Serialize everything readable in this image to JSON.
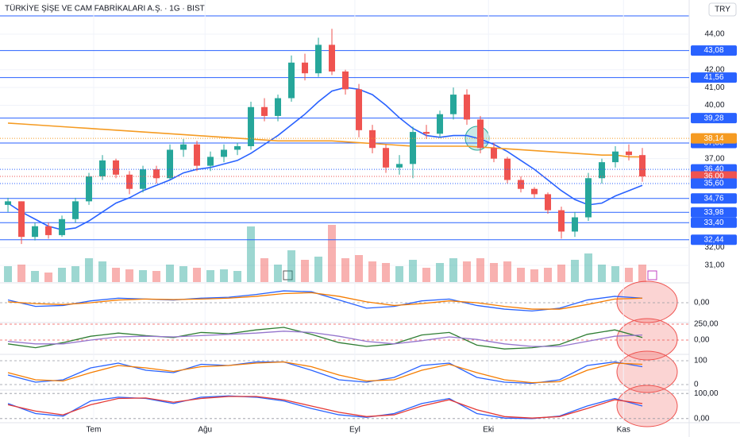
{
  "chart_data": {
    "type": "candlestick",
    "title": "TÜRKİYE ŞİŞE VE CAM FABRİKALARI A.Ş. · 1G · BIST",
    "currency": "TRY",
    "up_color": "#26a69a",
    "down_color": "#ef5350",
    "xlim": [
      -0.59,
      50.47
    ],
    "xticks": [
      {
        "value": 6.35,
        "label": "Tem"
      },
      {
        "value": 14.6,
        "label": "Ağu"
      },
      {
        "value": 25.7,
        "label": "Eyl"
      },
      {
        "value": 35.6,
        "label": "Eki"
      },
      {
        "value": 45.6,
        "label": "Kas"
      }
    ],
    "ylim": [
      30.06,
      45.92
    ],
    "yticks": [
      {
        "value": 31,
        "label": "31,00"
      },
      {
        "value": 32,
        "label": "32,00"
      },
      {
        "value": 37,
        "label": "37,00"
      },
      {
        "value": 40,
        "label": "40,00"
      },
      {
        "value": 41,
        "label": "41,00"
      },
      {
        "value": 42,
        "label": "42,00"
      },
      {
        "value": 44,
        "label": "44,00"
      }
    ],
    "candles": [
      [
        34.4,
        34.8,
        34.0,
        34.6
      ],
      [
        34.6,
        34.6,
        32.2,
        32.6
      ],
      [
        32.6,
        33.4,
        32.4,
        33.2
      ],
      [
        33.2,
        33.4,
        32.5,
        32.7
      ],
      [
        32.7,
        33.8,
        32.6,
        33.6
      ],
      [
        33.6,
        34.8,
        33.4,
        34.6
      ],
      [
        34.6,
        36.2,
        34.4,
        36.0
      ],
      [
        36.0,
        37.2,
        35.8,
        36.9
      ],
      [
        36.9,
        37.0,
        35.9,
        36.1
      ],
      [
        36.1,
        36.3,
        35.0,
        35.3
      ],
      [
        35.3,
        36.6,
        35.1,
        36.4
      ],
      [
        36.4,
        36.6,
        35.6,
        35.9
      ],
      [
        35.9,
        37.8,
        35.8,
        37.5
      ],
      [
        37.5,
        38.1,
        37.1,
        37.8
      ],
      [
        37.8,
        38.0,
        36.3,
        36.6
      ],
      [
        36.6,
        37.4,
        36.3,
        37.1
      ],
      [
        37.1,
        37.8,
        36.8,
        37.5
      ],
      [
        37.5,
        37.9,
        37.2,
        37.7
      ],
      [
        37.7,
        40.2,
        37.5,
        39.9
      ],
      [
        39.9,
        40.4,
        39.1,
        39.4
      ],
      [
        39.4,
        40.6,
        39.1,
        40.4
      ],
      [
        40.4,
        42.8,
        40.2,
        42.4
      ],
      [
        42.4,
        42.9,
        41.4,
        41.8
      ],
      [
        41.8,
        43.8,
        41.6,
        43.4
      ],
      [
        43.4,
        44.3,
        41.7,
        41.9
      ],
      [
        41.9,
        42.0,
        40.6,
        40.9
      ],
      [
        40.9,
        41.2,
        38.2,
        38.6
      ],
      [
        38.6,
        38.9,
        37.3,
        37.6
      ],
      [
        37.6,
        37.8,
        36.2,
        36.5
      ],
      [
        36.5,
        37.2,
        36.1,
        36.7
      ],
      [
        36.7,
        38.8,
        35.9,
        38.5
      ],
      [
        38.5,
        38.9,
        38.1,
        38.4
      ],
      [
        38.4,
        39.7,
        38.2,
        39.5
      ],
      [
        39.5,
        41.0,
        39.2,
        40.6
      ],
      [
        40.6,
        40.9,
        38.9,
        39.2
      ],
      [
        39.2,
        39.4,
        37.3,
        37.6
      ],
      [
        37.6,
        37.9,
        36.8,
        37.0
      ],
      [
        37.0,
        37.1,
        35.6,
        35.8
      ],
      [
        35.8,
        36.0,
        35.1,
        35.3
      ],
      [
        35.3,
        35.4,
        34.8,
        35.0
      ],
      [
        35.0,
        35.1,
        33.9,
        34.1
      ],
      [
        34.1,
        34.3,
        32.5,
        32.9
      ],
      [
        32.9,
        34.0,
        32.6,
        33.7
      ],
      [
        33.7,
        36.2,
        33.5,
        35.9
      ],
      [
        35.9,
        37.0,
        35.6,
        36.8
      ],
      [
        36.8,
        37.7,
        36.5,
        37.4
      ],
      [
        37.4,
        37.8,
        36.9,
        37.2
      ],
      [
        37.2,
        37.6,
        35.7,
        36.0
      ]
    ],
    "volume": [
      20,
      22,
      14,
      12,
      18,
      20,
      30,
      26,
      18,
      16,
      15,
      14,
      22,
      20,
      18,
      15,
      16,
      14,
      70,
      30,
      22,
      40,
      28,
      32,
      72,
      30,
      34,
      26,
      24,
      20,
      28,
      18,
      24,
      30,
      26,
      30,
      24,
      26,
      18,
      16,
      18,
      22,
      28,
      36,
      22,
      20,
      18,
      22
    ],
    "ma_lines": [
      {
        "color": "#2962ff",
        "values": [
          34.5,
          34.0,
          33.6,
          33.2,
          33.0,
          33.1,
          33.5,
          34.0,
          34.5,
          34.8,
          35.2,
          35.5,
          35.8,
          36.2,
          36.4,
          36.5,
          36.7,
          36.9,
          37.3,
          37.8,
          38.3,
          38.9,
          39.5,
          40.2,
          40.8,
          41.0,
          40.9,
          40.6,
          40.0,
          39.3,
          38.7,
          38.3,
          38.2,
          38.3,
          38.3,
          38.1,
          37.8,
          37.4,
          36.9,
          36.4,
          35.8,
          35.2,
          34.7,
          34.4,
          34.5,
          34.9,
          35.2,
          35.5
        ]
      },
      {
        "color": "#f59b22",
        "values": [
          39.0,
          38.95,
          38.9,
          38.85,
          38.8,
          38.75,
          38.7,
          38.65,
          38.6,
          38.55,
          38.5,
          38.45,
          38.4,
          38.35,
          38.3,
          38.25,
          38.2,
          38.15,
          38.1,
          38.05,
          38.0,
          38.0,
          38.0,
          38.0,
          38.0,
          37.95,
          37.9,
          37.85,
          37.8,
          37.75,
          37.7,
          37.7,
          37.7,
          37.7,
          37.7,
          37.65,
          37.6,
          37.55,
          37.5,
          37.45,
          37.4,
          37.35,
          37.3,
          37.25,
          37.2,
          37.2,
          37.1,
          37.1
        ]
      }
    ],
    "levels": [
      {
        "value": 43.08,
        "label": "43,08"
      },
      {
        "value": 41.56,
        "label": "41,56"
      },
      {
        "value": 39.28,
        "label": "39,28"
      },
      {
        "value": 37.88,
        "label": "37,88"
      },
      {
        "value": 34.76,
        "label": "34,76"
      },
      {
        "value": 33.98,
        "label": "33,98"
      },
      {
        "value": 33.4,
        "label": "33,40"
      },
      {
        "value": 32.44,
        "label": "32,44"
      }
    ],
    "level_color": "#2962ff",
    "price_tags": [
      {
        "value": 38.14,
        "label": "38,14",
        "color": "#f59b22"
      },
      {
        "value": 36.4,
        "label": "36,40",
        "color": "#2962ff"
      },
      {
        "value": 36.0,
        "label": "36,00",
        "color": "#ef5350"
      },
      {
        "value": 35.6,
        "label": "35,60",
        "color": "#2962ff"
      }
    ],
    "panels": [
      {
        "ylim": [
          -2,
          2
        ],
        "yticks": [
          {
            "value": 0,
            "label": "0,00"
          }
        ],
        "series": [
          {
            "color": "#2962ff",
            "values": [
              0.3,
              -0.4,
              -0.3,
              0.2,
              0.5,
              0.4,
              0.3,
              0.5,
              0.6,
              0.9,
              1.3,
              1.2,
              0.3,
              -0.6,
              -0.4,
              0.2,
              0.4,
              -0.3,
              -0.7,
              -0.9,
              -0.6,
              0.3,
              0.7,
              0.5
            ]
          },
          {
            "color": "#f57c00",
            "values": [
              0.1,
              -0.1,
              -0.2,
              0.0,
              0.3,
              0.4,
              0.35,
              0.4,
              0.5,
              0.7,
              1.0,
              1.1,
              0.7,
              0.1,
              -0.3,
              -0.1,
              0.2,
              0.0,
              -0.4,
              -0.7,
              -0.7,
              -0.2,
              0.4,
              0.5
            ]
          }
        ]
      },
      {
        "ylim": [
          -200,
          250
        ],
        "yticks": [
          {
            "value": 250,
            "label": "250,00"
          },
          {
            "value": 0,
            "label": "0,00"
          }
        ],
        "series": [
          {
            "color": "#2e7d32",
            "values": [
              -60,
              -120,
              -40,
              60,
              110,
              70,
              40,
              120,
              100,
              160,
              200,
              90,
              -40,
              -100,
              -60,
              80,
              120,
              -80,
              -140,
              -120,
              -70,
              90,
              160,
              40
            ]
          },
          {
            "color": "#9575cd",
            "values": [
              -20,
              -60,
              -60,
              0,
              50,
              60,
              50,
              70,
              90,
              110,
              140,
              120,
              60,
              -20,
              -60,
              -10,
              50,
              10,
              -60,
              -100,
              -100,
              -20,
              60,
              80
            ]
          }
        ]
      },
      {
        "ylim": [
          -20,
          120
        ],
        "yticks": [
          {
            "value": 100,
            "label": "100"
          },
          {
            "value": 0,
            "label": "0"
          }
        ],
        "series": [
          {
            "color": "#2962ff",
            "values": [
              40,
              10,
              20,
              70,
              90,
              60,
              50,
              85,
              80,
              95,
              95,
              60,
              20,
              10,
              30,
              80,
              90,
              30,
              10,
              5,
              20,
              80,
              95,
              75
            ]
          },
          {
            "color": "#f57c00",
            "values": [
              50,
              20,
              15,
              50,
              80,
              70,
              55,
              75,
              80,
              90,
              95,
              75,
              40,
              15,
              20,
              60,
              85,
              50,
              20,
              8,
              12,
              60,
              90,
              85
            ]
          }
        ]
      },
      {
        "ylim": [
          -10,
          110
        ],
        "yticks": [
          {
            "value": 100,
            "label": "100,00"
          },
          {
            "value": 0,
            "label": "0,00"
          }
        ],
        "series": [
          {
            "color": "#2962ff",
            "values": [
              60,
              20,
              10,
              70,
              85,
              80,
              60,
              85,
              90,
              85,
              70,
              40,
              15,
              5,
              20,
              60,
              80,
              20,
              2,
              0,
              10,
              50,
              80,
              50
            ]
          },
          {
            "color": "#e53935",
            "values": [
              55,
              30,
              15,
              55,
              80,
              82,
              65,
              80,
              88,
              88,
              75,
              50,
              25,
              8,
              15,
              50,
              75,
              35,
              8,
              2,
              8,
              40,
              75,
              60
            ]
          }
        ]
      }
    ]
  }
}
